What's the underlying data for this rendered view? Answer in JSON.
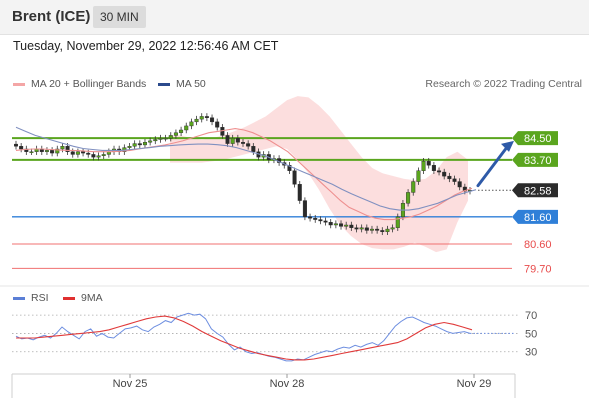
{
  "header": {
    "title": "Brent (ICE)",
    "timeframe": "30 MIN"
  },
  "datetime": "Tuesday, November 29, 2022 12:56:46 AM CET",
  "legend": {
    "items": [
      {
        "label": "MA 20 + Bollinger Bands",
        "color": "#f4a6a6"
      },
      {
        "label": "MA 50",
        "color": "#2b4a8c"
      }
    ],
    "research": "Research © 2022 Trading Central"
  },
  "rsi_legend": {
    "items": [
      {
        "label": "RSI",
        "color": "#5b7fd6"
      },
      {
        "label": "9MA",
        "color": "#e03030"
      }
    ]
  },
  "chart_data": [
    {
      "type": "candlestick",
      "ylim": [
        79.2,
        86.2
      ],
      "x_tick_labels": [
        "Nov 25",
        "Nov 28",
        "Nov 29"
      ],
      "closes": [
        84.2,
        84.1,
        84.0,
        84.0,
        84.1,
        84.0,
        84.05,
        83.95,
        84.1,
        84.2,
        84.0,
        83.9,
        84.0,
        83.95,
        83.9,
        83.8,
        83.85,
        83.9,
        84.0,
        84.1,
        84.0,
        84.15,
        84.2,
        84.3,
        84.25,
        84.35,
        84.4,
        84.45,
        84.5,
        84.5,
        84.6,
        84.7,
        84.8,
        84.95,
        85.1,
        85.2,
        85.3,
        85.25,
        85.1,
        84.9,
        84.6,
        84.3,
        84.5,
        84.35,
        84.3,
        84.2,
        84.0,
        83.8,
        83.9,
        83.7,
        83.75,
        83.6,
        83.5,
        83.3,
        82.8,
        82.2,
        81.6,
        81.55,
        81.5,
        81.45,
        81.4,
        81.3,
        81.35,
        81.25,
        81.3,
        81.2,
        81.15,
        81.2,
        81.1,
        81.15,
        81.1,
        81.05,
        81.15,
        81.2,
        81.6,
        82.1,
        82.5,
        82.9,
        83.3,
        83.65,
        83.5,
        83.3,
        83.25,
        83.1,
        83.0,
        82.9,
        82.7,
        82.55,
        82.58
      ],
      "ma20": [
        84.05,
        84.08,
        84.1,
        84.1,
        84.08,
        84.06,
        84.05,
        84.04,
        84.02,
        84.0,
        84.0,
        84.0,
        84.02,
        84.05,
        84.1,
        84.15,
        84.2,
        84.25,
        84.32,
        84.4,
        84.5,
        84.6,
        84.7,
        84.75,
        84.8,
        84.85,
        84.8,
        84.7,
        84.55,
        84.4,
        84.2,
        84.0,
        83.7,
        83.4,
        83.1,
        82.8,
        82.5,
        82.2,
        81.95,
        81.8,
        81.65,
        81.55,
        81.5,
        81.5,
        81.55,
        81.6,
        81.7,
        81.85,
        82.0,
        82.2,
        82.4,
        82.55,
        82.65
      ],
      "ma50": [
        84.9,
        84.75,
        84.6,
        84.5,
        84.4,
        84.3,
        84.2,
        84.12,
        84.08,
        84.05,
        84.05,
        84.05,
        84.08,
        84.12,
        84.15,
        84.2,
        84.22,
        84.25,
        84.27,
        84.28,
        84.28,
        84.26,
        84.22,
        84.15,
        84.05,
        83.95,
        83.85,
        83.7,
        83.55,
        83.4,
        83.25,
        83.1,
        82.95,
        82.8,
        82.62,
        82.45,
        82.3,
        82.15,
        82.0,
        81.9,
        81.85,
        81.85,
        81.9,
        82.0,
        82.1,
        82.25,
        82.4,
        82.5,
        82.6
      ],
      "bollinger_upper": [
        84.6,
        84.6,
        84.5,
        84.45,
        84.5,
        84.6,
        84.75,
        84.9,
        85.1,
        85.3,
        85.6,
        85.9,
        86.05,
        86.0,
        85.7,
        85.3,
        84.8,
        84.3,
        83.8,
        83.4,
        83.2,
        83.1,
        83.0,
        82.95,
        83.0,
        83.3,
        83.8,
        84.0,
        83.7
      ],
      "bollinger_lower": [
        83.6,
        83.6,
        83.6,
        83.6,
        83.65,
        83.7,
        83.8,
        83.9,
        84.0,
        84.1,
        84.2,
        84.1,
        83.7,
        83.2,
        82.6,
        81.9,
        81.3,
        80.9,
        80.6,
        80.45,
        80.4,
        80.4,
        80.5,
        80.65,
        80.5,
        80.3,
        80.4,
        81.4,
        82.2
      ],
      "levels": [
        {
          "value": 84.5,
          "label": "84.50",
          "kind": "resistance",
          "color": "#5aa51e"
        },
        {
          "value": 83.7,
          "label": "83.70",
          "kind": "resistance",
          "color": "#5aa51e"
        },
        {
          "value": 82.58,
          "label": "82.58",
          "kind": "last-price",
          "color": "#333333"
        },
        {
          "value": 81.6,
          "label": "81.60",
          "kind": "pivot",
          "color": "#2f7fd8"
        },
        {
          "value": 80.6,
          "label": "80.60",
          "kind": "support",
          "color": "#f07070"
        },
        {
          "value": 79.7,
          "label": "79.70",
          "kind": "support",
          "color": "#f07070"
        }
      ]
    },
    {
      "type": "line",
      "name": "RSI",
      "ylim": [
        10,
        80
      ],
      "y_ticks": [
        70,
        50,
        30
      ],
      "rsi": [
        47,
        44,
        45,
        43,
        46,
        48,
        45,
        50,
        57,
        52,
        48,
        44,
        52,
        55,
        47,
        50,
        46,
        45,
        50,
        55,
        56,
        58,
        54,
        52,
        57,
        60,
        64,
        62,
        68,
        70,
        72,
        70,
        71,
        66,
        55,
        50,
        46,
        38,
        32,
        35,
        30,
        28,
        29,
        27,
        25,
        24,
        22,
        20,
        20,
        22,
        21,
        24,
        27,
        29,
        31,
        30,
        33,
        35,
        34,
        37,
        35,
        38,
        40,
        37,
        42,
        50,
        58,
        63,
        67,
        68,
        65,
        62,
        60,
        58,
        55,
        52,
        50,
        51,
        52,
        50
      ],
      "ma9": [
        45,
        45,
        45,
        46,
        47,
        48,
        49,
        50,
        51,
        52,
        54,
        57,
        60,
        63,
        66,
        68,
        69,
        67,
        63,
        58,
        52,
        47,
        42,
        38,
        34,
        31,
        28,
        26,
        24,
        22,
        21,
        21,
        22,
        24,
        26,
        28,
        30,
        32,
        34,
        36,
        38,
        40,
        44,
        50,
        56,
        60,
        62,
        60,
        57,
        54
      ]
    }
  ]
}
